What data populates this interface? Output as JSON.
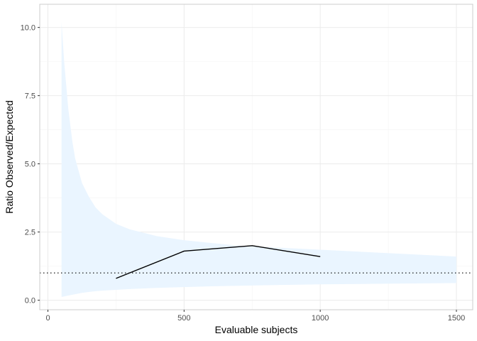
{
  "chart_data": {
    "type": "line",
    "xlabel": "Evaluable subjects",
    "ylabel": "Ratio Observed/Expected",
    "xlim": [
      -30,
      1560
    ],
    "ylim": [
      -0.35,
      10.85
    ],
    "x_ticks": [
      0,
      500,
      1000,
      1500
    ],
    "x_tick_labels": [
      "0",
      "500",
      "1000",
      "1500"
    ],
    "y_ticks": [
      0,
      2.5,
      5,
      7.5,
      10
    ],
    "y_tick_labels": [
      "0.0",
      "2.5",
      "5.0",
      "7.5",
      "10.0"
    ],
    "grid": true,
    "series": [
      {
        "role": "observed",
        "style": "solid",
        "color": "#000000",
        "x": [
          250,
          500,
          750,
          1000
        ],
        "y": [
          0.8,
          1.8,
          2.0,
          1.6
        ]
      }
    ],
    "band": {
      "color": "#eaf5ff",
      "x": [
        50,
        60,
        75,
        90,
        100,
        125,
        150,
        175,
        200,
        250,
        300,
        400,
        500,
        600,
        700,
        800,
        1000,
        1200,
        1500
      ],
      "upper": [
        10.2,
        8.7,
        7.0,
        5.8,
        5.2,
        4.3,
        3.8,
        3.4,
        3.15,
        2.8,
        2.6,
        2.35,
        2.2,
        2.1,
        2.0,
        1.95,
        1.85,
        1.75,
        1.6
      ],
      "lower": [
        0.12,
        0.14,
        0.17,
        0.2,
        0.22,
        0.27,
        0.3,
        0.33,
        0.35,
        0.38,
        0.41,
        0.45,
        0.48,
        0.51,
        0.53,
        0.55,
        0.58,
        0.6,
        0.63
      ]
    },
    "reference_line": {
      "y": 1.0,
      "style": "dotted",
      "color": "#000000"
    }
  }
}
